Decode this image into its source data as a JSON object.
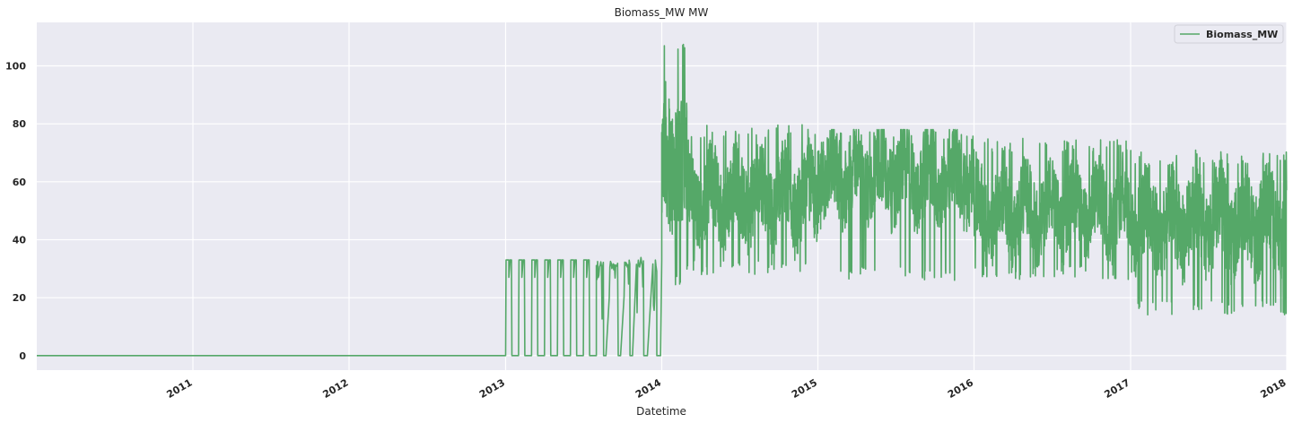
{
  "chart_data": {
    "type": "line",
    "title": "Biomass_MW MW",
    "xlabel": "Datetime",
    "ylabel": "",
    "x_axis": {
      "type": "date",
      "range": [
        "2010-01-01",
        "2018-01-01"
      ],
      "ticks": [
        "2011",
        "2012",
        "2013",
        "2014",
        "2015",
        "2016",
        "2017",
        "2018"
      ],
      "tick_label_rotation": "30deg"
    },
    "y_axis": {
      "range": [
        -5,
        115
      ],
      "ticks": [
        0,
        20,
        40,
        60,
        80,
        100
      ]
    },
    "grid": true,
    "background": "#eaeaf2",
    "legend": {
      "placement": "top-right",
      "entries": [
        "Biomass_MW"
      ]
    },
    "series": [
      {
        "name": "Biomass_MW",
        "color": "#55a868",
        "phases": [
          {
            "start": "2010-01-01",
            "end": "2013-01-01",
            "pattern": "constant",
            "value": 0
          },
          {
            "start": "2013-01-01",
            "end": "2013-08-01",
            "pattern": "square_pulses",
            "high": 33,
            "low": 0,
            "note_pulse_count": 7
          },
          {
            "start": "2013-08-01",
            "end": "2014-01-01",
            "pattern": "noisy_pulses",
            "high": 33,
            "low": 0,
            "noise_min": 10,
            "noise_max": 34
          },
          {
            "start": "2014-01-01",
            "end": "2014-03-01",
            "pattern": "noisy",
            "min": 24,
            "max": 110,
            "peak": 110,
            "peak_date": "2014-02-20"
          },
          {
            "start": "2014-03-01",
            "end": "2015-01-01",
            "pattern": "noisy",
            "min": 28,
            "max": 80,
            "mean": 55
          },
          {
            "start": "2015-01-01",
            "end": "2016-01-01",
            "pattern": "noisy",
            "min": 26,
            "max": 78,
            "mean": 62
          },
          {
            "start": "2016-01-01",
            "end": "2017-01-01",
            "pattern": "noisy",
            "min": 26,
            "max": 75,
            "mean": 50
          },
          {
            "start": "2017-01-01",
            "end": "2018-01-01",
            "pattern": "noisy",
            "min": 14,
            "max": 71,
            "mean": 46
          }
        ]
      }
    ]
  }
}
